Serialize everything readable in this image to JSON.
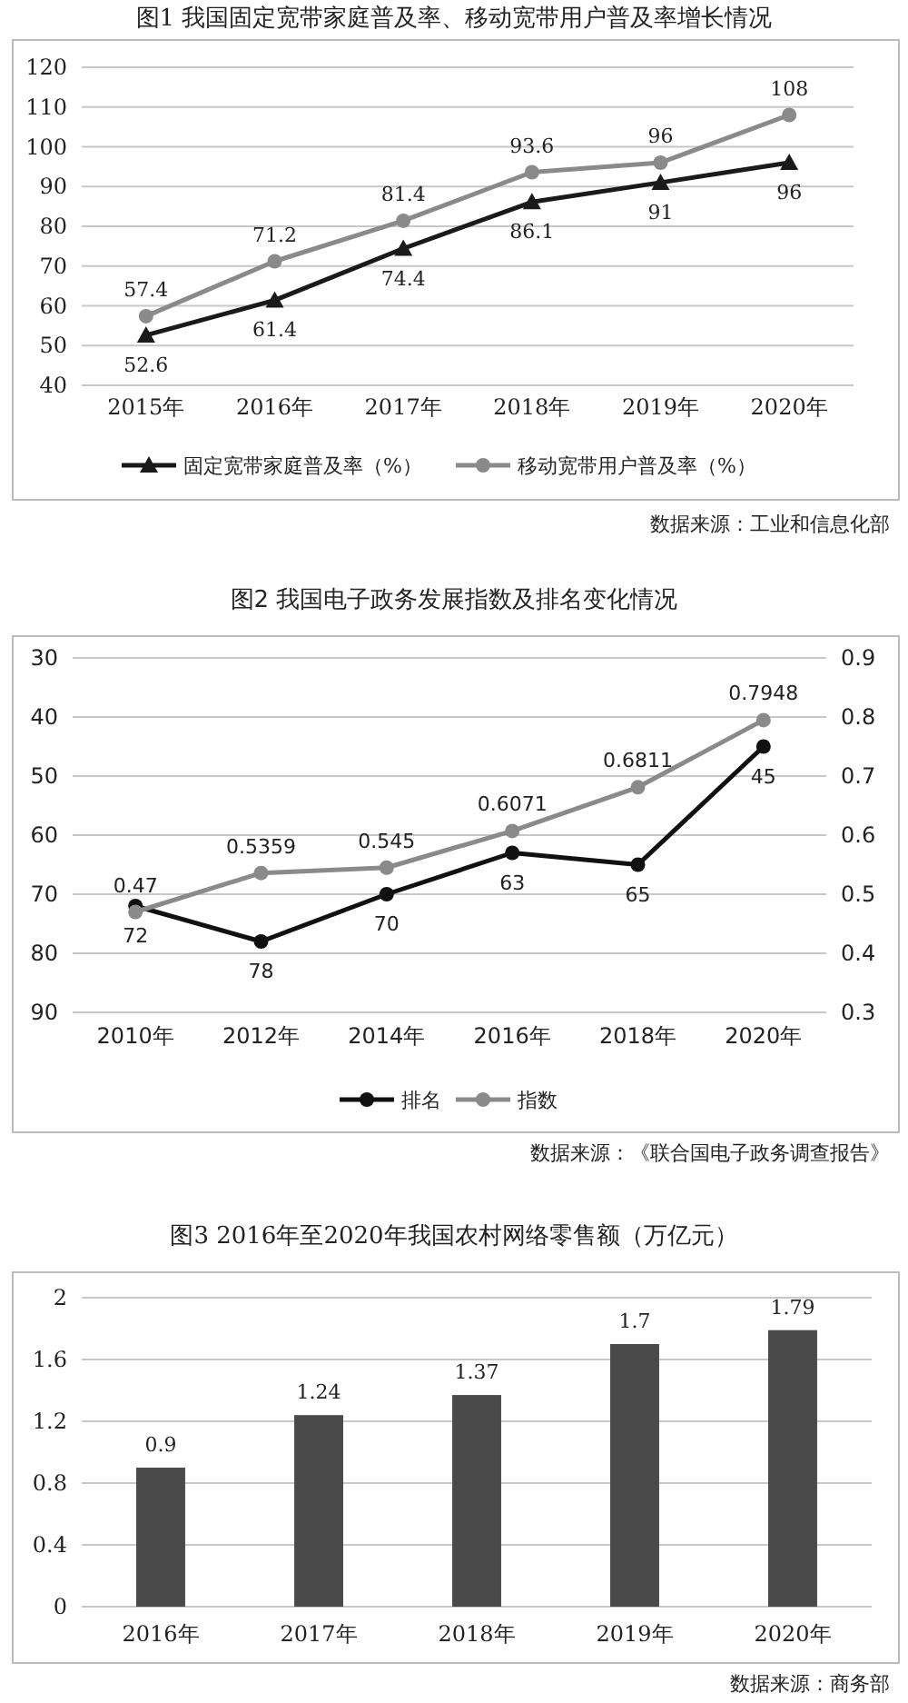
{
  "chart_data": [
    {
      "type": "line",
      "title": "图1 我国固定宽带家庭普及率、移动宽带用户普及率增长情况",
      "categories": [
        "2015年",
        "2016年",
        "2017年",
        "2018年",
        "2019年",
        "2020年"
      ],
      "series": [
        {
          "name": "固定宽带家庭普及率（%）",
          "color": "#1a1a1a",
          "marker": "triangle",
          "values": [
            52.6,
            61.4,
            74.4,
            86.1,
            91,
            96
          ]
        },
        {
          "name": "移动宽带用户普及率（%）",
          "color": "#8a8a8a",
          "marker": "circle",
          "values": [
            57.4,
            71.2,
            81.4,
            93.6,
            96,
            108
          ]
        }
      ],
      "ylim": [
        40,
        120
      ],
      "yticks": [
        40,
        50,
        60,
        70,
        80,
        90,
        100,
        110,
        120
      ],
      "grid": "y",
      "legend": "bottom",
      "data_labels": true,
      "line_style": "solid",
      "annotations": [
        "数据来源：工业和信息化部"
      ]
    },
    {
      "type": "line",
      "title": "图2 我国电子政务发展指数及排名变化情况",
      "categories": [
        "2010年",
        "2012年",
        "2014年",
        "2016年",
        "2018年",
        "2020年"
      ],
      "series": [
        {
          "name": "排名",
          "color": "#111111",
          "marker": "circle",
          "values": [
            72,
            78,
            70,
            63,
            65,
            45
          ]
        },
        {
          "name": "指数",
          "color": "#8a8a8a",
          "marker": "circle",
          "axis": "y2",
          "values": [
            0.47,
            0.5359,
            0.545,
            0.6071,
            0.6811,
            0.7948
          ]
        }
      ],
      "ylim": [
        90,
        30
      ],
      "yticks": [
        30,
        40,
        50,
        60,
        70,
        80,
        90
      ],
      "y2lim": [
        0.3,
        0.9
      ],
      "y2ticks": [
        0.3,
        0.4,
        0.5,
        0.6,
        0.7,
        0.8,
        0.9
      ],
      "grid": "y",
      "legend": "bottom",
      "data_labels": true,
      "line_style": "solid",
      "annotations": [
        "数据来源：《联合国电子政务调查报告》"
      ]
    },
    {
      "type": "bar",
      "title": "图3 2016年至2020年我国农村网络零售额（万亿元）",
      "categories": [
        "2016年",
        "2017年",
        "2018年",
        "2019年",
        "2020年"
      ],
      "values": [
        0.9,
        1.24,
        1.37,
        1.7,
        1.79
      ],
      "color": "#4a4a4a",
      "ylim": [
        0,
        2
      ],
      "yticks": [
        0,
        0.4,
        0.8,
        1.2,
        1.6,
        2
      ],
      "grid": "y",
      "data_labels": true,
      "annotations": [
        "数据来源：商务部"
      ]
    }
  ]
}
